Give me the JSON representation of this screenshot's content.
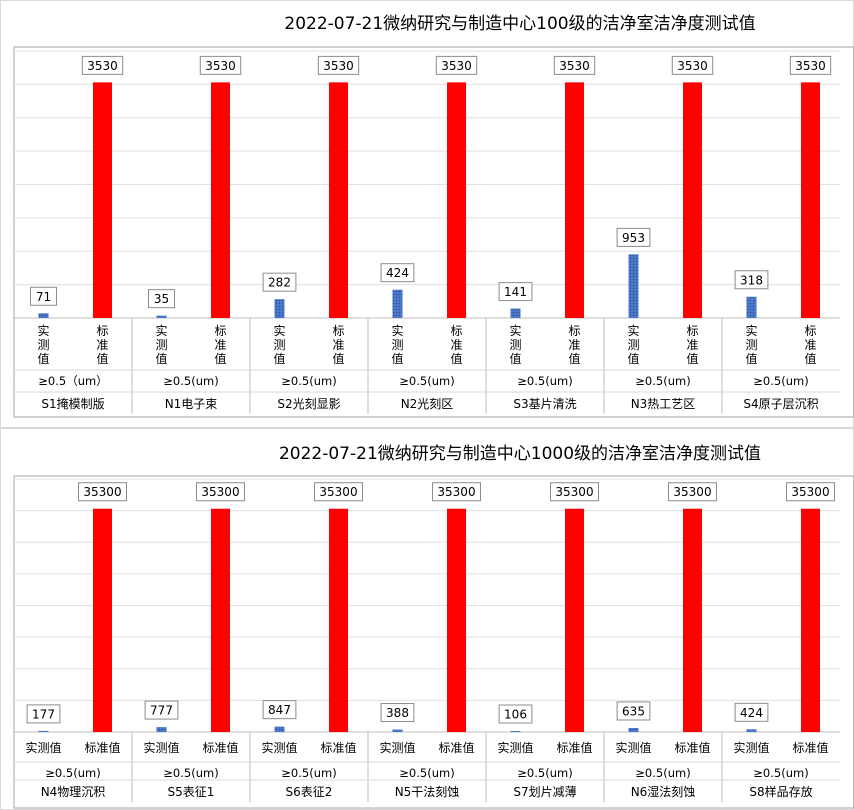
{
  "chart_data": [
    {
      "type": "bar",
      "title": "2022-07-21微纳研究与制造中心100级的洁净室洁净度测试值",
      "series": [
        {
          "name": "实测值",
          "color": "#4472c4"
        },
        {
          "name": "标准值",
          "color": "#ff0000"
        }
      ],
      "groups": [
        {
          "bar_labels": [
            "实测值",
            "标准值"
          ],
          "values": [
            71,
            3530
          ],
          "particle": "≥0.5（um）",
          "room": "S1掩模制版"
        },
        {
          "bar_labels": [
            "实测值",
            "标准值"
          ],
          "values": [
            35,
            3530
          ],
          "particle": "≥0.5(um)",
          "room": "N1电子束"
        },
        {
          "bar_labels": [
            "实测值",
            "标准值"
          ],
          "values": [
            282,
            3530
          ],
          "particle": "≥0.5(um)",
          "room": "S2光刻显影"
        },
        {
          "bar_labels": [
            "实测值",
            "标准值"
          ],
          "values": [
            424,
            3530
          ],
          "particle": "≥0.5(um)",
          "room": "N2光刻区"
        },
        {
          "bar_labels": [
            "实测值",
            "标准值"
          ],
          "values": [
            141,
            3530
          ],
          "particle": "≥0.5(um)",
          "room": "S3基片清洗"
        },
        {
          "bar_labels": [
            "实测值",
            "标准值"
          ],
          "values": [
            953,
            3530
          ],
          "particle": "≥0.5(um)",
          "room": "N3热工艺区"
        },
        {
          "bar_labels": [
            "实测值",
            "标准值"
          ],
          "values": [
            318,
            3530
          ],
          "particle": "≥0.5(um)",
          "room": "S4原子层沉积"
        }
      ],
      "ylim": [
        0,
        4000
      ],
      "grid": true,
      "legend": "none"
    },
    {
      "type": "bar",
      "title": "2022-07-21微纳研究与制造中心1000级的洁净室洁净度测试值",
      "series": [
        {
          "name": "实测值",
          "color": "#4472c4"
        },
        {
          "name": "标准值",
          "color": "#ff0000"
        }
      ],
      "groups": [
        {
          "bar_labels": [
            "实测值",
            "标准值"
          ],
          "values": [
            177,
            35300
          ],
          "particle": "≥0.5(um)",
          "room": "N4物理沉积"
        },
        {
          "bar_labels": [
            "实测值",
            "标准值"
          ],
          "values": [
            777,
            35300
          ],
          "particle": "≥0.5(um)",
          "room": "S5表征1"
        },
        {
          "bar_labels": [
            "实测值",
            "标准值"
          ],
          "values": [
            847,
            35300
          ],
          "particle": "≥0.5(um)",
          "room": "S6表征2"
        },
        {
          "bar_labels": [
            "实测值",
            "标准值"
          ],
          "values": [
            388,
            35300
          ],
          "particle": "≥0.5(um)",
          "room": "N5干法刻蚀"
        },
        {
          "bar_labels": [
            "实测值",
            "标准值"
          ],
          "values": [
            106,
            35300
          ],
          "particle": "≥0.5(um)",
          "room": "S7划片减薄"
        },
        {
          "bar_labels": [
            "实测值",
            "标准值"
          ],
          "values": [
            635,
            35300
          ],
          "particle": "≥0.5(um)",
          "room": "N6湿法刻蚀"
        },
        {
          "bar_labels": [
            "实测值",
            "标准值"
          ],
          "values": [
            424,
            35300
          ],
          "particle": "≥0.5(um)",
          "room": "S8样品存放"
        }
      ],
      "ylim": [
        0,
        40000
      ],
      "grid": true,
      "legend": "none"
    }
  ]
}
